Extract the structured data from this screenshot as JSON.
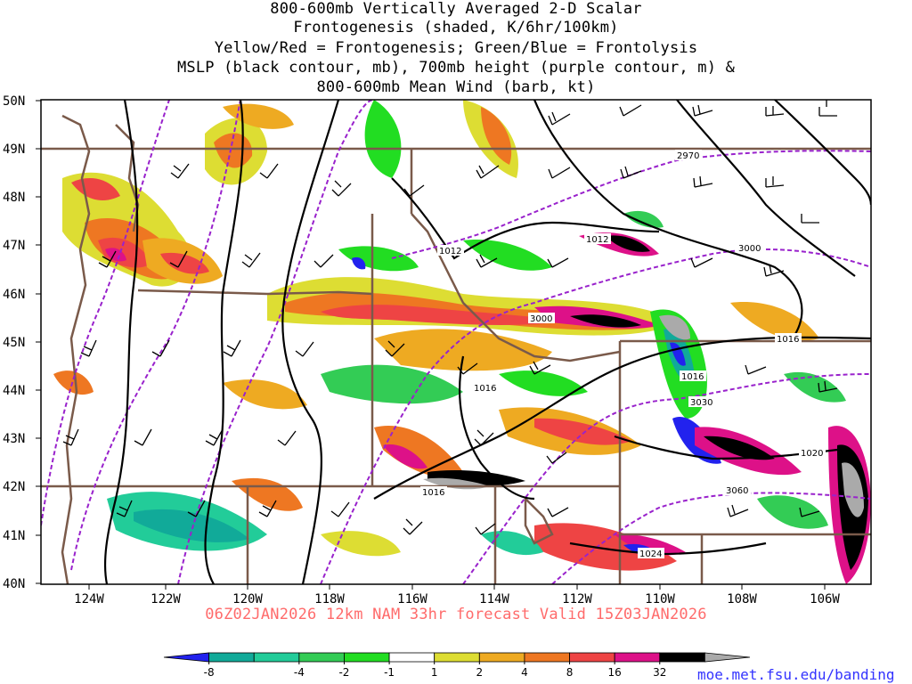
{
  "title_lines": [
    "800-600mb Vertically Averaged 2-D Scalar",
    "Frontogenesis (shaded, K/6hr/100km)",
    "Yellow/Red = Frontogenesis;  Green/Blue = Frontolysis",
    "MSLP (black contour, mb), 700mb height (purple contour, m) &",
    "800-600mb Mean Wind (barb, kt)"
  ],
  "subtitle": "06Z02JAN2026 12km NAM 33hr forecast Valid 15Z03JAN2026",
  "credit": "moe.met.fsu.edu/banding",
  "lat_labels": [
    "50N",
    "49N",
    "48N",
    "47N",
    "46N",
    "45N",
    "44N",
    "43N",
    "42N",
    "41N",
    "40N"
  ],
  "lon_labels": [
    "124W",
    "122W",
    "120W",
    "118W",
    "116W",
    "114W",
    "112W",
    "110W",
    "108W",
    "106W"
  ],
  "contour_labels": {
    "mslp": [
      "1012",
      "1012",
      "1016",
      "1016",
      "1016",
      "1016",
      "1020",
      "1024"
    ],
    "height": [
      "2970",
      "3000",
      "3000",
      "3030",
      "3060"
    ]
  },
  "colorbar": {
    "ticks": [
      "-8",
      "-4",
      "-2",
      "-1",
      "1",
      "2",
      "4",
      "8",
      "16",
      "32"
    ],
    "colors": [
      "#2222ee",
      "#11aa99",
      "#22cc99",
      "#33cc55",
      "#22dd22",
      "#ffffff",
      "#dddd33",
      "#eeaa22",
      "#ee7722",
      "#ee4444",
      "#dd1188",
      "#000000",
      "#aaaaaa"
    ]
  }
}
